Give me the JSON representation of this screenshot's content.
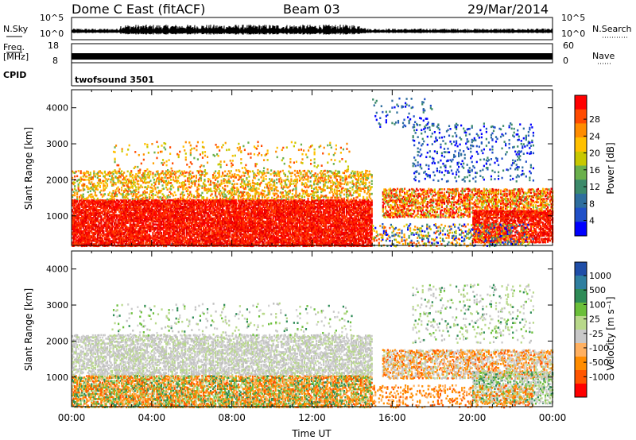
{
  "header": {
    "station": "Dome C East (fitACF)",
    "beam": "Beam 03",
    "date": "29/Mar/2014"
  },
  "strip_labels": {
    "nsky": "N.Sky",
    "nsearch": "N.Search",
    "freq": "Freq.",
    "freq_unit": "[MHz]",
    "nave": "Nave",
    "cpid": "CPID",
    "cpid_value": "twofsound 3501",
    "noise_ticks_left": [
      "10^5",
      "10^0"
    ],
    "noise_ticks_right": [
      "10^5",
      "10^0"
    ],
    "freq_ticks": [
      "18",
      "8"
    ],
    "nave_ticks": [
      "60",
      "0"
    ]
  },
  "chart_data": [
    {
      "type": "heatmap",
      "panel": "power",
      "ylabel": "Slant Range [km]",
      "xlabel": "Time UT",
      "x_ticks": [
        "00:00",
        "04:00",
        "08:00",
        "12:00",
        "16:00",
        "20:00",
        "00:00"
      ],
      "x_range_hours": [
        0,
        24
      ],
      "y_range_km": [
        180,
        4500
      ],
      "y_ticks": [
        1000,
        2000,
        3000,
        4000
      ],
      "colorbar_label": "Power [dB]",
      "colorbar_ticks": [
        "28",
        "24",
        "20",
        "16",
        "12",
        "8",
        "4"
      ],
      "colorbar_colors": [
        "#ff0000",
        "#ff4a00",
        "#ff8c00",
        "#ffc000",
        "#c8c800",
        "#6ab04c",
        "#3c8a6a",
        "#2e6e9e",
        "#2050c8",
        "#0000ff"
      ]
    },
    {
      "type": "heatmap",
      "panel": "velocity",
      "ylabel": "Slant Range [km]",
      "xlabel": "Time UT",
      "x_ticks": [
        "00:00",
        "04:00",
        "08:00",
        "12:00",
        "16:00",
        "20:00",
        "00:00"
      ],
      "x_range_hours": [
        0,
        24
      ],
      "y_range_km": [
        180,
        4500
      ],
      "y_ticks": [
        1000,
        2000,
        3000,
        4000
      ],
      "colorbar_label": "Velocity [m s⁻¹]",
      "colorbar_ticks": [
        "1000",
        "500",
        "100",
        "25",
        "-25",
        "-100",
        "-500",
        "-1000"
      ],
      "colorbar_colors": [
        "#1f4ea8",
        "#2f7fa0",
        "#2e8b57",
        "#6bbf3a",
        "#b8d88a",
        "#c8c8c8",
        "#ffb060",
        "#ff8c00",
        "#ff5500",
        "#ff0000"
      ]
    }
  ]
}
